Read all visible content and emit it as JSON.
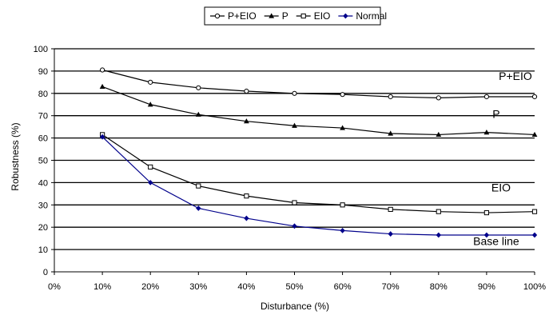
{
  "chart_data": {
    "type": "line",
    "xlabel": "Disturbance (%)",
    "ylabel": "Robustness (%)",
    "x_ticks": [
      "0%",
      "10%",
      "20%",
      "30%",
      "40%",
      "50%",
      "60%",
      "70%",
      "80%",
      "90%",
      "100%"
    ],
    "x": [
      10,
      20,
      30,
      40,
      50,
      60,
      70,
      80,
      90,
      100
    ],
    "xlim": [
      0,
      100
    ],
    "ylim": [
      0,
      100
    ],
    "y_ticks": [
      "0",
      "10",
      "20",
      "30",
      "40",
      "50",
      "60",
      "70",
      "80",
      "90",
      "100"
    ],
    "grid": "horizontal",
    "legend_position": "top-center",
    "series": [
      {
        "name": "P+EIO",
        "marker": "circle-open",
        "color": "#000000",
        "values": [
          90.5,
          85,
          82.5,
          81,
          80,
          79.5,
          78.5,
          78,
          78.5,
          78.5
        ]
      },
      {
        "name": "P",
        "marker": "triangle-filled",
        "color": "#000000",
        "values": [
          83,
          75,
          70.5,
          67.5,
          65.5,
          64.5,
          62,
          61.5,
          62.5,
          61.5
        ]
      },
      {
        "name": "EIO",
        "marker": "square-open",
        "color": "#000000",
        "values": [
          61.5,
          47,
          38.5,
          34,
          31,
          30,
          28,
          27,
          26.5,
          27
        ]
      },
      {
        "name": "Normal",
        "marker": "diamond-filled",
        "color": "#00008b",
        "values": [
          60.5,
          40,
          28.5,
          24,
          20.5,
          18.5,
          17,
          16.5,
          16.5,
          16.5
        ]
      }
    ],
    "annotations": [
      {
        "text": "P+EIO",
        "x": 96,
        "y": 86
      },
      {
        "text": "P",
        "x": 92,
        "y": 69
      },
      {
        "text": "EIO",
        "x": 93,
        "y": 36
      },
      {
        "text": "Base line",
        "x": 92,
        "y": 12
      }
    ]
  }
}
